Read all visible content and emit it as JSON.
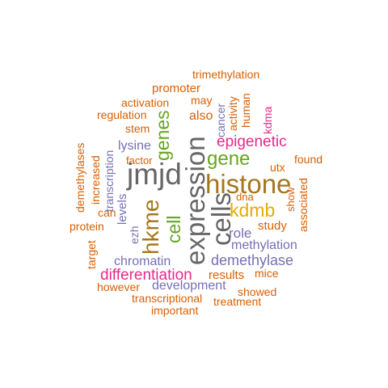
{
  "colors": {
    "orange": "#d95f02",
    "gray": "#666666",
    "purple": "#7570b3",
    "magenta": "#e7298a",
    "green": "#66a61e",
    "brown": "#a6761d",
    "gold": "#e6ab02"
  },
  "words": [
    {
      "text": "trimethylation",
      "color": "orange",
      "vertical": false
    },
    {
      "text": "promoter",
      "color": "orange",
      "vertical": false
    },
    {
      "text": "activation",
      "color": "orange",
      "vertical": false
    },
    {
      "text": "may",
      "color": "orange",
      "vertical": false
    },
    {
      "text": "regulation",
      "color": "orange",
      "vertical": false
    },
    {
      "text": "also",
      "color": "orange",
      "vertical": false
    },
    {
      "text": "stem",
      "color": "orange",
      "vertical": false
    },
    {
      "text": "lysine",
      "color": "purple",
      "vertical": false
    },
    {
      "text": "factor",
      "color": "orange",
      "vertical": false
    },
    {
      "text": "epigenetic",
      "color": "magenta",
      "vertical": false
    },
    {
      "text": "gene",
      "color": "green",
      "vertical": false
    },
    {
      "text": "found",
      "color": "orange",
      "vertical": false
    },
    {
      "text": "jmjd",
      "color": "gray",
      "vertical": false
    },
    {
      "text": "utx",
      "color": "orange",
      "vertical": false
    },
    {
      "text": "histone",
      "color": "brown",
      "vertical": false
    },
    {
      "text": "dna",
      "color": "orange",
      "vertical": false
    },
    {
      "text": "kdmb",
      "color": "gold",
      "vertical": false
    },
    {
      "text": "study",
      "color": "orange",
      "vertical": false
    },
    {
      "text": "protein",
      "color": "orange",
      "vertical": false
    },
    {
      "text": "can",
      "color": "orange",
      "vertical": false
    },
    {
      "text": "role",
      "color": "purple",
      "vertical": false
    },
    {
      "text": "methylation",
      "color": "purple",
      "vertical": false
    },
    {
      "text": "demethylase",
      "color": "purple",
      "vertical": false
    },
    {
      "text": "chromatin",
      "color": "purple",
      "vertical": false
    },
    {
      "text": "differentiation",
      "color": "magenta",
      "vertical": false
    },
    {
      "text": "results",
      "color": "orange",
      "vertical": false
    },
    {
      "text": "mice",
      "color": "orange",
      "vertical": false
    },
    {
      "text": "however",
      "color": "orange",
      "vertical": false
    },
    {
      "text": "development",
      "color": "purple",
      "vertical": false
    },
    {
      "text": "showed",
      "color": "orange",
      "vertical": false
    },
    {
      "text": "transcriptional",
      "color": "orange",
      "vertical": false
    },
    {
      "text": "treatment",
      "color": "orange",
      "vertical": false
    },
    {
      "text": "important",
      "color": "orange",
      "vertical": false
    },
    {
      "text": "cancer",
      "color": "purple",
      "vertical": true
    },
    {
      "text": "activity",
      "color": "orange",
      "vertical": true
    },
    {
      "text": "human",
      "color": "orange",
      "vertical": true
    },
    {
      "text": "kdma",
      "color": "magenta",
      "vertical": true
    },
    {
      "text": "genes",
      "color": "green",
      "vertical": true
    },
    {
      "text": "expression",
      "color": "gray",
      "vertical": true
    },
    {
      "text": "cells",
      "color": "gray",
      "vertical": true
    },
    {
      "text": "hkme",
      "color": "brown",
      "vertical": true
    },
    {
      "text": "cell",
      "color": "green",
      "vertical": true
    },
    {
      "text": "demethylases",
      "color": "orange",
      "vertical": true
    },
    {
      "text": "increased",
      "color": "orange",
      "vertical": true
    },
    {
      "text": "transcription",
      "color": "purple",
      "vertical": true
    },
    {
      "text": "levels",
      "color": "purple",
      "vertical": true
    },
    {
      "text": "ezh",
      "color": "purple",
      "vertical": true
    },
    {
      "text": "target",
      "color": "orange",
      "vertical": true
    },
    {
      "text": "show",
      "color": "orange",
      "vertical": true
    },
    {
      "text": "associated",
      "color": "orange",
      "vertical": true
    }
  ]
}
